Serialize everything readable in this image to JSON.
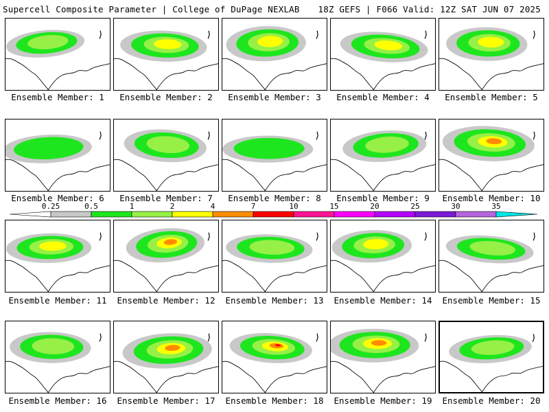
{
  "header": {
    "left": "Supercell Composite Parameter | College of DuPage NEXLAB",
    "right": "18Z GEFS | F066 Valid: 12Z SAT JUN 07 2025"
  },
  "members": [
    {
      "label": "Ensemble Member: 1",
      "intensity": 2
    },
    {
      "label": "Ensemble Member: 2",
      "intensity": 3
    },
    {
      "label": "Ensemble Member: 3",
      "intensity": 3
    },
    {
      "label": "Ensemble Member: 4",
      "intensity": 3
    },
    {
      "label": "Ensemble Member: 5",
      "intensity": 3
    },
    {
      "label": "Ensemble Member: 6",
      "intensity": 1
    },
    {
      "label": "Ensemble Member: 7",
      "intensity": 2
    },
    {
      "label": "Ensemble Member: 8",
      "intensity": 1
    },
    {
      "label": "Ensemble Member: 9",
      "intensity": 2
    },
    {
      "label": "Ensemble Member: 10",
      "intensity": 4
    },
    {
      "label": "Ensemble Member: 11",
      "intensity": 3
    },
    {
      "label": "Ensemble Member: 12",
      "intensity": 4
    },
    {
      "label": "Ensemble Member: 13",
      "intensity": 2
    },
    {
      "label": "Ensemble Member: 14",
      "intensity": 3
    },
    {
      "label": "Ensemble Member: 15",
      "intensity": 2
    },
    {
      "label": "Ensemble Member: 16",
      "intensity": 2
    },
    {
      "label": "Ensemble Member: 17",
      "intensity": 4
    },
    {
      "label": "Ensemble Member: 18",
      "intensity": 5
    },
    {
      "label": "Ensemble Member: 19",
      "intensity": 4
    },
    {
      "label": "Ensemble Member: 20",
      "intensity": 2,
      "selected": true
    }
  ],
  "colorbar": {
    "ticks": [
      "0.25",
      "0.5",
      "1",
      "2",
      "4",
      "7",
      "10",
      "15",
      "20",
      "25",
      "30",
      "35"
    ],
    "colors": [
      "#ffffff",
      "#c8c8c8",
      "#1ee61e",
      "#96f046",
      "#ffff00",
      "#ff8c00",
      "#ff0000",
      "#ff1493",
      "#ff00ff",
      "#b400ff",
      "#7a1ad6",
      "#b464dc",
      "#00e6e6"
    ]
  },
  "colors": {
    "map_lines": "#000000",
    "shade_levels": [
      "#c8c8c8",
      "#1ee61e",
      "#96f046",
      "#ffff00",
      "#ff8c00",
      "#ff0000"
    ]
  }
}
